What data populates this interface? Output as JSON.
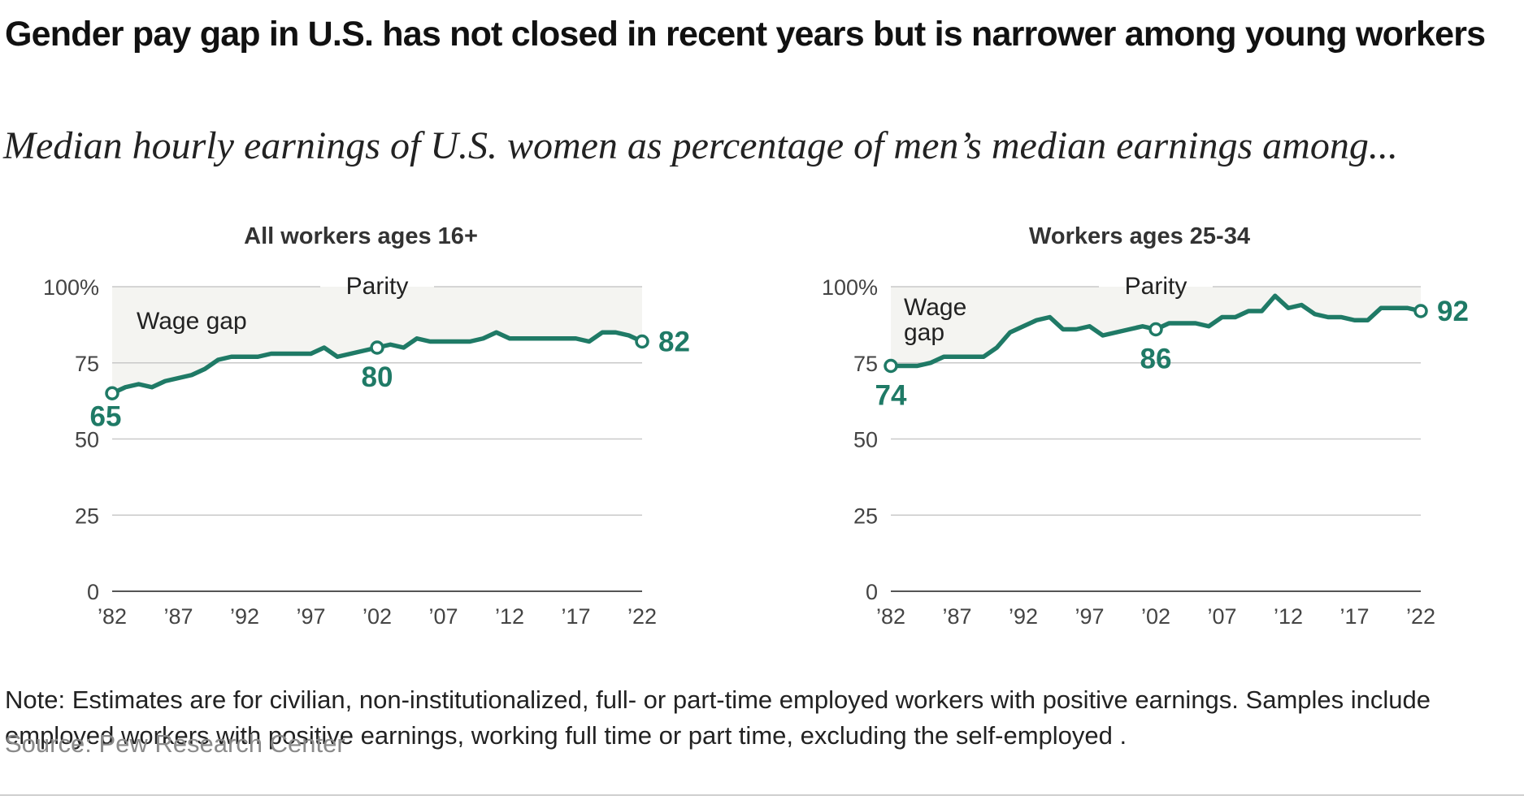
{
  "title": "Gender pay gap in U.S. has not closed in recent years but is narrower among young workers",
  "subtitle": "Median hourly earnings of U.S. women as percentage of men’s median earnings among...",
  "note": "Note: Estimates are for civilian, non-institutionalized, full- or part-time employed workers with positive earnings. Samples include employed workers with positive earnings, working full time or part time, excluding the self-employed .",
  "source": "Source: Pew Research Center",
  "colors": {
    "line": "#1f7a66",
    "gap_fill": "#f4f4f1",
    "grid": "#c9c9c9",
    "axis": "#555555"
  },
  "chart_data": [
    {
      "type": "line",
      "title": "All workers ages 16+",
      "ylim": [
        0,
        100
      ],
      "yticks": [
        0,
        25,
        50,
        75,
        100
      ],
      "ytick_labels": [
        "0",
        "25",
        "50",
        "75",
        "100%"
      ],
      "xlim": [
        1982,
        2022
      ],
      "xticks": [
        1982,
        1987,
        1992,
        1997,
        2002,
        2007,
        2012,
        2017,
        2022
      ],
      "xtick_labels": [
        "’82",
        "’87",
        "’92",
        "’97",
        "’02",
        "’07",
        "’12",
        "’17",
        "’22"
      ],
      "parity_label": "Parity",
      "gap_label": "Wage gap",
      "x": [
        1982,
        1983,
        1984,
        1985,
        1986,
        1987,
        1988,
        1989,
        1990,
        1991,
        1992,
        1993,
        1994,
        1995,
        1996,
        1997,
        1998,
        1999,
        2000,
        2001,
        2002,
        2003,
        2004,
        2005,
        2006,
        2007,
        2008,
        2009,
        2010,
        2011,
        2012,
        2013,
        2014,
        2015,
        2016,
        2017,
        2018,
        2019,
        2020,
        2021,
        2022
      ],
      "y": [
        65,
        67,
        68,
        67,
        69,
        70,
        71,
        73,
        76,
        77,
        77,
        77,
        78,
        78,
        78,
        78,
        80,
        77,
        78,
        79,
        80,
        81,
        80,
        83,
        82,
        82,
        82,
        82,
        83,
        85,
        83,
        83,
        83,
        83,
        83,
        83,
        82,
        85,
        85,
        84,
        82
      ],
      "highlights": [
        {
          "x": 1982,
          "label": "65",
          "pos": "below-left"
        },
        {
          "x": 2002,
          "label": "80",
          "pos": "below"
        },
        {
          "x": 2022,
          "label": "82",
          "pos": "right"
        }
      ]
    },
    {
      "type": "line",
      "title": "Workers ages 25-34",
      "ylim": [
        0,
        100
      ],
      "yticks": [
        0,
        25,
        50,
        75,
        100
      ],
      "ytick_labels": [
        "0",
        "25",
        "50",
        "75",
        "100%"
      ],
      "xlim": [
        1982,
        2022
      ],
      "xticks": [
        1982,
        1987,
        1992,
        1997,
        2002,
        2007,
        2012,
        2017,
        2022
      ],
      "xtick_labels": [
        "’82",
        "’87",
        "’92",
        "’97",
        "’02",
        "’07",
        "’12",
        "’17",
        "’22"
      ],
      "parity_label": "Parity",
      "gap_label": "Wage gap",
      "x": [
        1982,
        1983,
        1984,
        1985,
        1986,
        1987,
        1988,
        1989,
        1990,
        1991,
        1992,
        1993,
        1994,
        1995,
        1996,
        1997,
        1998,
        1999,
        2000,
        2001,
        2002,
        2003,
        2004,
        2005,
        2006,
        2007,
        2008,
        2009,
        2010,
        2011,
        2012,
        2013,
        2014,
        2015,
        2016,
        2017,
        2018,
        2019,
        2020,
        2021,
        2022
      ],
      "y": [
        74,
        74,
        74,
        75,
        77,
        77,
        77,
        77,
        80,
        85,
        87,
        89,
        90,
        86,
        86,
        87,
        84,
        85,
        86,
        87,
        86,
        88,
        88,
        88,
        87,
        90,
        90,
        92,
        92,
        97,
        93,
        94,
        91,
        90,
        90,
        89,
        89,
        93,
        93,
        93,
        92
      ],
      "highlights": [
        {
          "x": 1982,
          "label": "74",
          "pos": "below"
        },
        {
          "x": 2002,
          "label": "86",
          "pos": "below"
        },
        {
          "x": 2022,
          "label": "92",
          "pos": "right"
        }
      ]
    }
  ]
}
